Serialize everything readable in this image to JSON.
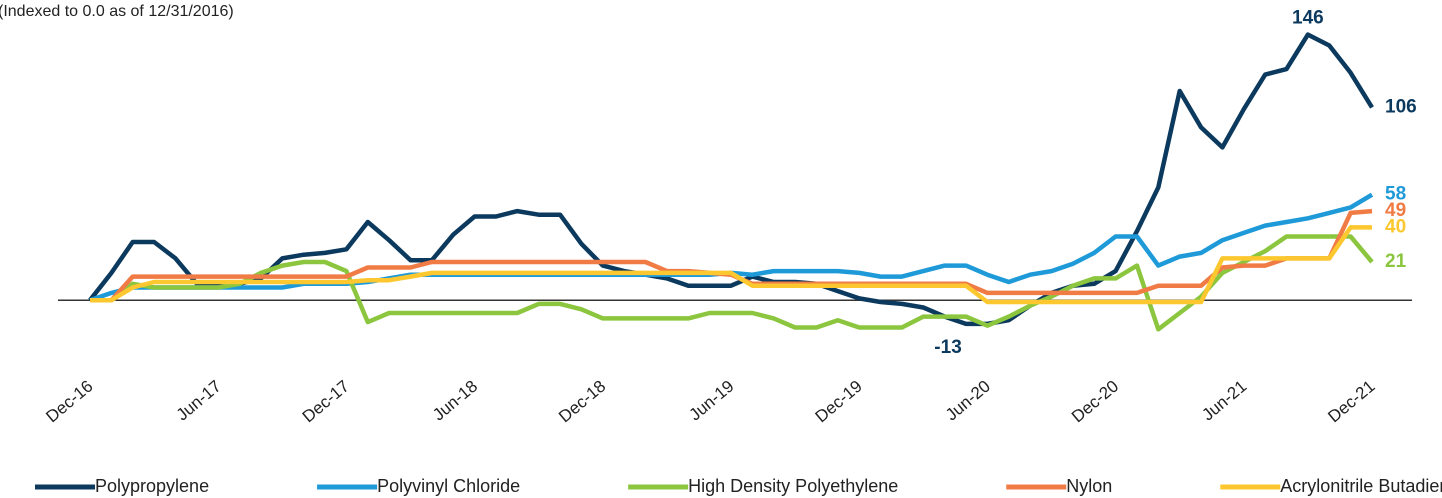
{
  "chart_data": {
    "type": "line",
    "subtitle": "(Indexed to 0.0 as of 12/31/2016)",
    "categories": [
      "Dec-16",
      null,
      null,
      null,
      null,
      null,
      "Jun-17",
      null,
      null,
      null,
      null,
      null,
      "Dec-17",
      null,
      null,
      null,
      null,
      null,
      "Jun-18",
      null,
      null,
      null,
      null,
      null,
      "Dec-18",
      null,
      null,
      null,
      null,
      null,
      "Jun-19",
      null,
      null,
      null,
      null,
      null,
      "Dec-19",
      null,
      null,
      null,
      null,
      null,
      "Jun-20",
      null,
      null,
      null,
      null,
      null,
      "Dec-20",
      null,
      null,
      null,
      null,
      null,
      "Jun-21",
      null,
      null,
      null,
      null,
      null,
      "Dec-21"
    ],
    "ylim": [
      -40,
      165
    ],
    "legend": "bottom",
    "series": [
      {
        "name": "Polypropylene",
        "color": "#0c3a5e",
        "values": [
          0,
          15,
          32,
          32,
          23,
          9,
          9,
          9,
          12,
          23,
          25,
          26,
          28,
          43,
          33,
          22,
          22,
          36,
          46,
          46,
          49,
          47,
          47,
          31,
          19,
          16,
          14,
          12,
          8,
          8,
          8,
          13,
          10,
          10,
          9,
          5,
          1,
          -1,
          -2,
          -4,
          -9,
          -13,
          -13,
          -11,
          -3,
          4,
          8,
          9,
          16,
          38,
          62,
          115,
          95,
          84,
          105,
          124,
          127,
          146,
          140,
          125,
          106
        ],
        "value_labels": [
          null,
          null,
          null,
          null,
          null,
          null,
          null,
          null,
          null,
          null,
          null,
          null,
          null,
          null,
          null,
          null,
          null,
          null,
          null,
          null,
          null,
          null,
          null,
          null,
          null,
          null,
          null,
          null,
          null,
          null,
          null,
          null,
          null,
          null,
          null,
          null,
          null,
          null,
          null,
          null,
          null,
          "-13",
          null,
          null,
          null,
          null,
          null,
          null,
          null,
          null,
          null,
          null,
          null,
          null,
          null,
          null,
          null,
          "146",
          null,
          null,
          "106"
        ]
      },
      {
        "name": "Polyvinyl Chloride",
        "color": "#1f9ad8",
        "values": [
          0,
          4,
          7,
          7,
          7,
          7,
          7,
          7,
          7,
          7,
          9,
          9,
          9,
          10,
          12,
          14,
          14,
          14,
          14,
          14,
          14,
          14,
          14,
          14,
          14,
          14,
          14,
          14,
          14,
          14,
          15,
          14,
          16,
          16,
          16,
          16,
          15,
          13,
          13,
          16,
          19,
          19,
          14,
          10,
          14,
          16,
          20,
          26,
          35,
          35,
          19,
          24,
          26,
          33,
          37,
          41,
          43,
          45,
          48,
          51,
          58
        ],
        "value_labels": [
          null,
          null,
          null,
          null,
          null,
          null,
          null,
          null,
          null,
          null,
          null,
          null,
          null,
          null,
          null,
          null,
          null,
          null,
          null,
          null,
          null,
          null,
          null,
          null,
          null,
          null,
          null,
          null,
          null,
          null,
          null,
          null,
          null,
          null,
          null,
          null,
          null,
          null,
          null,
          null,
          null,
          null,
          null,
          null,
          null,
          null,
          null,
          null,
          null,
          null,
          null,
          null,
          null,
          null,
          null,
          null,
          null,
          null,
          null,
          null,
          "58"
        ]
      },
      {
        "name": "High Density Polyethylene",
        "color": "#8cc63f",
        "values": [
          0,
          0,
          9,
          7,
          7,
          7,
          7,
          9,
          15,
          19,
          21,
          21,
          16,
          -12,
          -7,
          -7,
          -7,
          -7,
          -7,
          -7,
          -7,
          -2,
          -2,
          -5,
          -10,
          -10,
          -10,
          -10,
          -10,
          -7,
          -7,
          -7,
          -10,
          -15,
          -15,
          -11,
          -15,
          -15,
          -15,
          -9,
          -9,
          -9,
          -14,
          -9,
          -3,
          2,
          8,
          12,
          12,
          19,
          -16,
          -7,
          2,
          15,
          21,
          27,
          35,
          35,
          35,
          35,
          21
        ],
        "value_labels": [
          null,
          null,
          null,
          null,
          null,
          null,
          null,
          null,
          null,
          null,
          null,
          null,
          null,
          null,
          null,
          null,
          null,
          null,
          null,
          null,
          null,
          null,
          null,
          null,
          null,
          null,
          null,
          null,
          null,
          null,
          null,
          null,
          null,
          null,
          null,
          null,
          null,
          null,
          null,
          null,
          null,
          null,
          null,
          null,
          null,
          null,
          null,
          null,
          null,
          null,
          null,
          null,
          null,
          null,
          null,
          null,
          null,
          null,
          null,
          null,
          "21"
        ]
      },
      {
        "name": "Nylon",
        "color": "#f07b44",
        "values": [
          0,
          0,
          13,
          13,
          13,
          13,
          13,
          13,
          13,
          13,
          13,
          13,
          13,
          18,
          18,
          18,
          21,
          21,
          21,
          21,
          21,
          21,
          21,
          21,
          21,
          21,
          21,
          16,
          16,
          15,
          14,
          9,
          9,
          9,
          9,
          9,
          9,
          9,
          9,
          9,
          9,
          9,
          4,
          4,
          4,
          4,
          4,
          4,
          4,
          4,
          8,
          8,
          8,
          18,
          19,
          19,
          23,
          23,
          23,
          48,
          49
        ],
        "value_labels": [
          null,
          null,
          null,
          null,
          null,
          null,
          null,
          null,
          null,
          null,
          null,
          null,
          null,
          null,
          null,
          null,
          null,
          null,
          null,
          null,
          null,
          null,
          null,
          null,
          null,
          null,
          null,
          null,
          null,
          null,
          null,
          null,
          null,
          null,
          null,
          null,
          null,
          null,
          null,
          null,
          null,
          null,
          null,
          null,
          null,
          null,
          null,
          null,
          null,
          null,
          null,
          null,
          null,
          null,
          null,
          null,
          null,
          null,
          null,
          null,
          "49"
        ]
      },
      {
        "name": "Acrylonitrile Butadiene Styrene",
        "color": "#fdc82f",
        "values": [
          0,
          0,
          7,
          10,
          10,
          10,
          10,
          10,
          10,
          10,
          10,
          10,
          10,
          11,
          11,
          13,
          15,
          15,
          15,
          15,
          15,
          15,
          15,
          15,
          15,
          15,
          15,
          15,
          15,
          15,
          15,
          8,
          8,
          8,
          8,
          8,
          8,
          8,
          8,
          8,
          8,
          8,
          -1,
          -1,
          -1,
          -1,
          -1,
          -1,
          -1,
          -1,
          -1,
          -1,
          -1,
          23,
          23,
          23,
          23,
          23,
          23,
          40,
          40
        ],
        "value_labels": [
          null,
          null,
          null,
          null,
          null,
          null,
          null,
          null,
          null,
          null,
          null,
          null,
          null,
          null,
          null,
          null,
          null,
          null,
          null,
          null,
          null,
          null,
          null,
          null,
          null,
          null,
          null,
          null,
          null,
          null,
          null,
          null,
          null,
          null,
          null,
          null,
          null,
          null,
          null,
          null,
          null,
          null,
          null,
          null,
          null,
          null,
          null,
          null,
          null,
          null,
          null,
          null,
          null,
          null,
          null,
          null,
          null,
          null,
          null,
          null,
          "40"
        ]
      }
    ]
  }
}
